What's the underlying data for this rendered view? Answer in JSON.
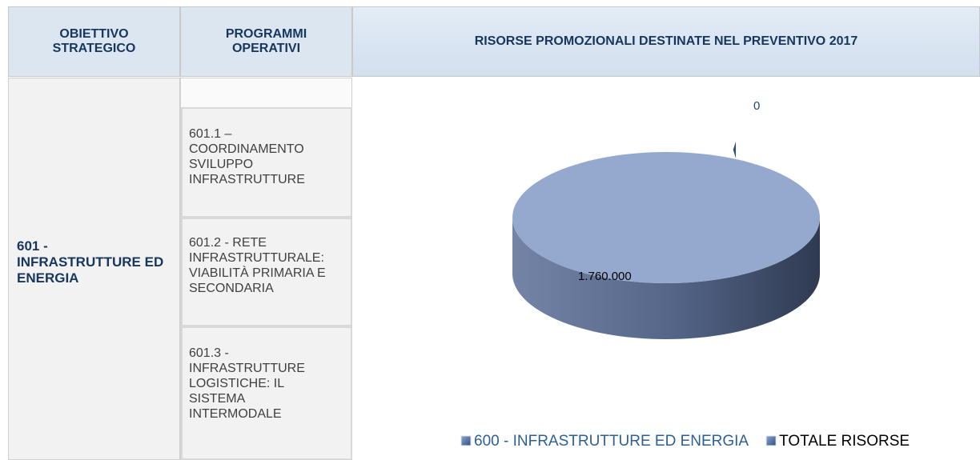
{
  "header": {
    "col1": "OBIETTIVO STRATEGICO",
    "col2": "PROGRAMMI OPERATIVI",
    "col3": "RISORSE PROMOZIONALI DESTINATE NEL PREVENTIVO 2017"
  },
  "table": {
    "objective": "601 - INFRASTRUTTURE ED ENERGIA",
    "programs": [
      "601.1 – COORDINAMENTO SVILUPPO INFRASTRUTTURE",
      "601.2 - RETE INFRASTRUTTURALE: VIABILITÀ PRIMARIA E SECONDARIA",
      "601.3 - INFRASTRUTTURE LOGISTICHE: IL SISTEMA INTERMODALE"
    ]
  },
  "chart_data": {
    "type": "pie",
    "categories": [
      "600 - INFRASTRUTTURE ED ENERGIA",
      "TOTALE RISORSE"
    ],
    "values": [
      0,
      1760000
    ],
    "value_labels": [
      "0",
      "1.760.000"
    ],
    "colors": [
      "#2f4f7f",
      "#95a9cf"
    ]
  }
}
